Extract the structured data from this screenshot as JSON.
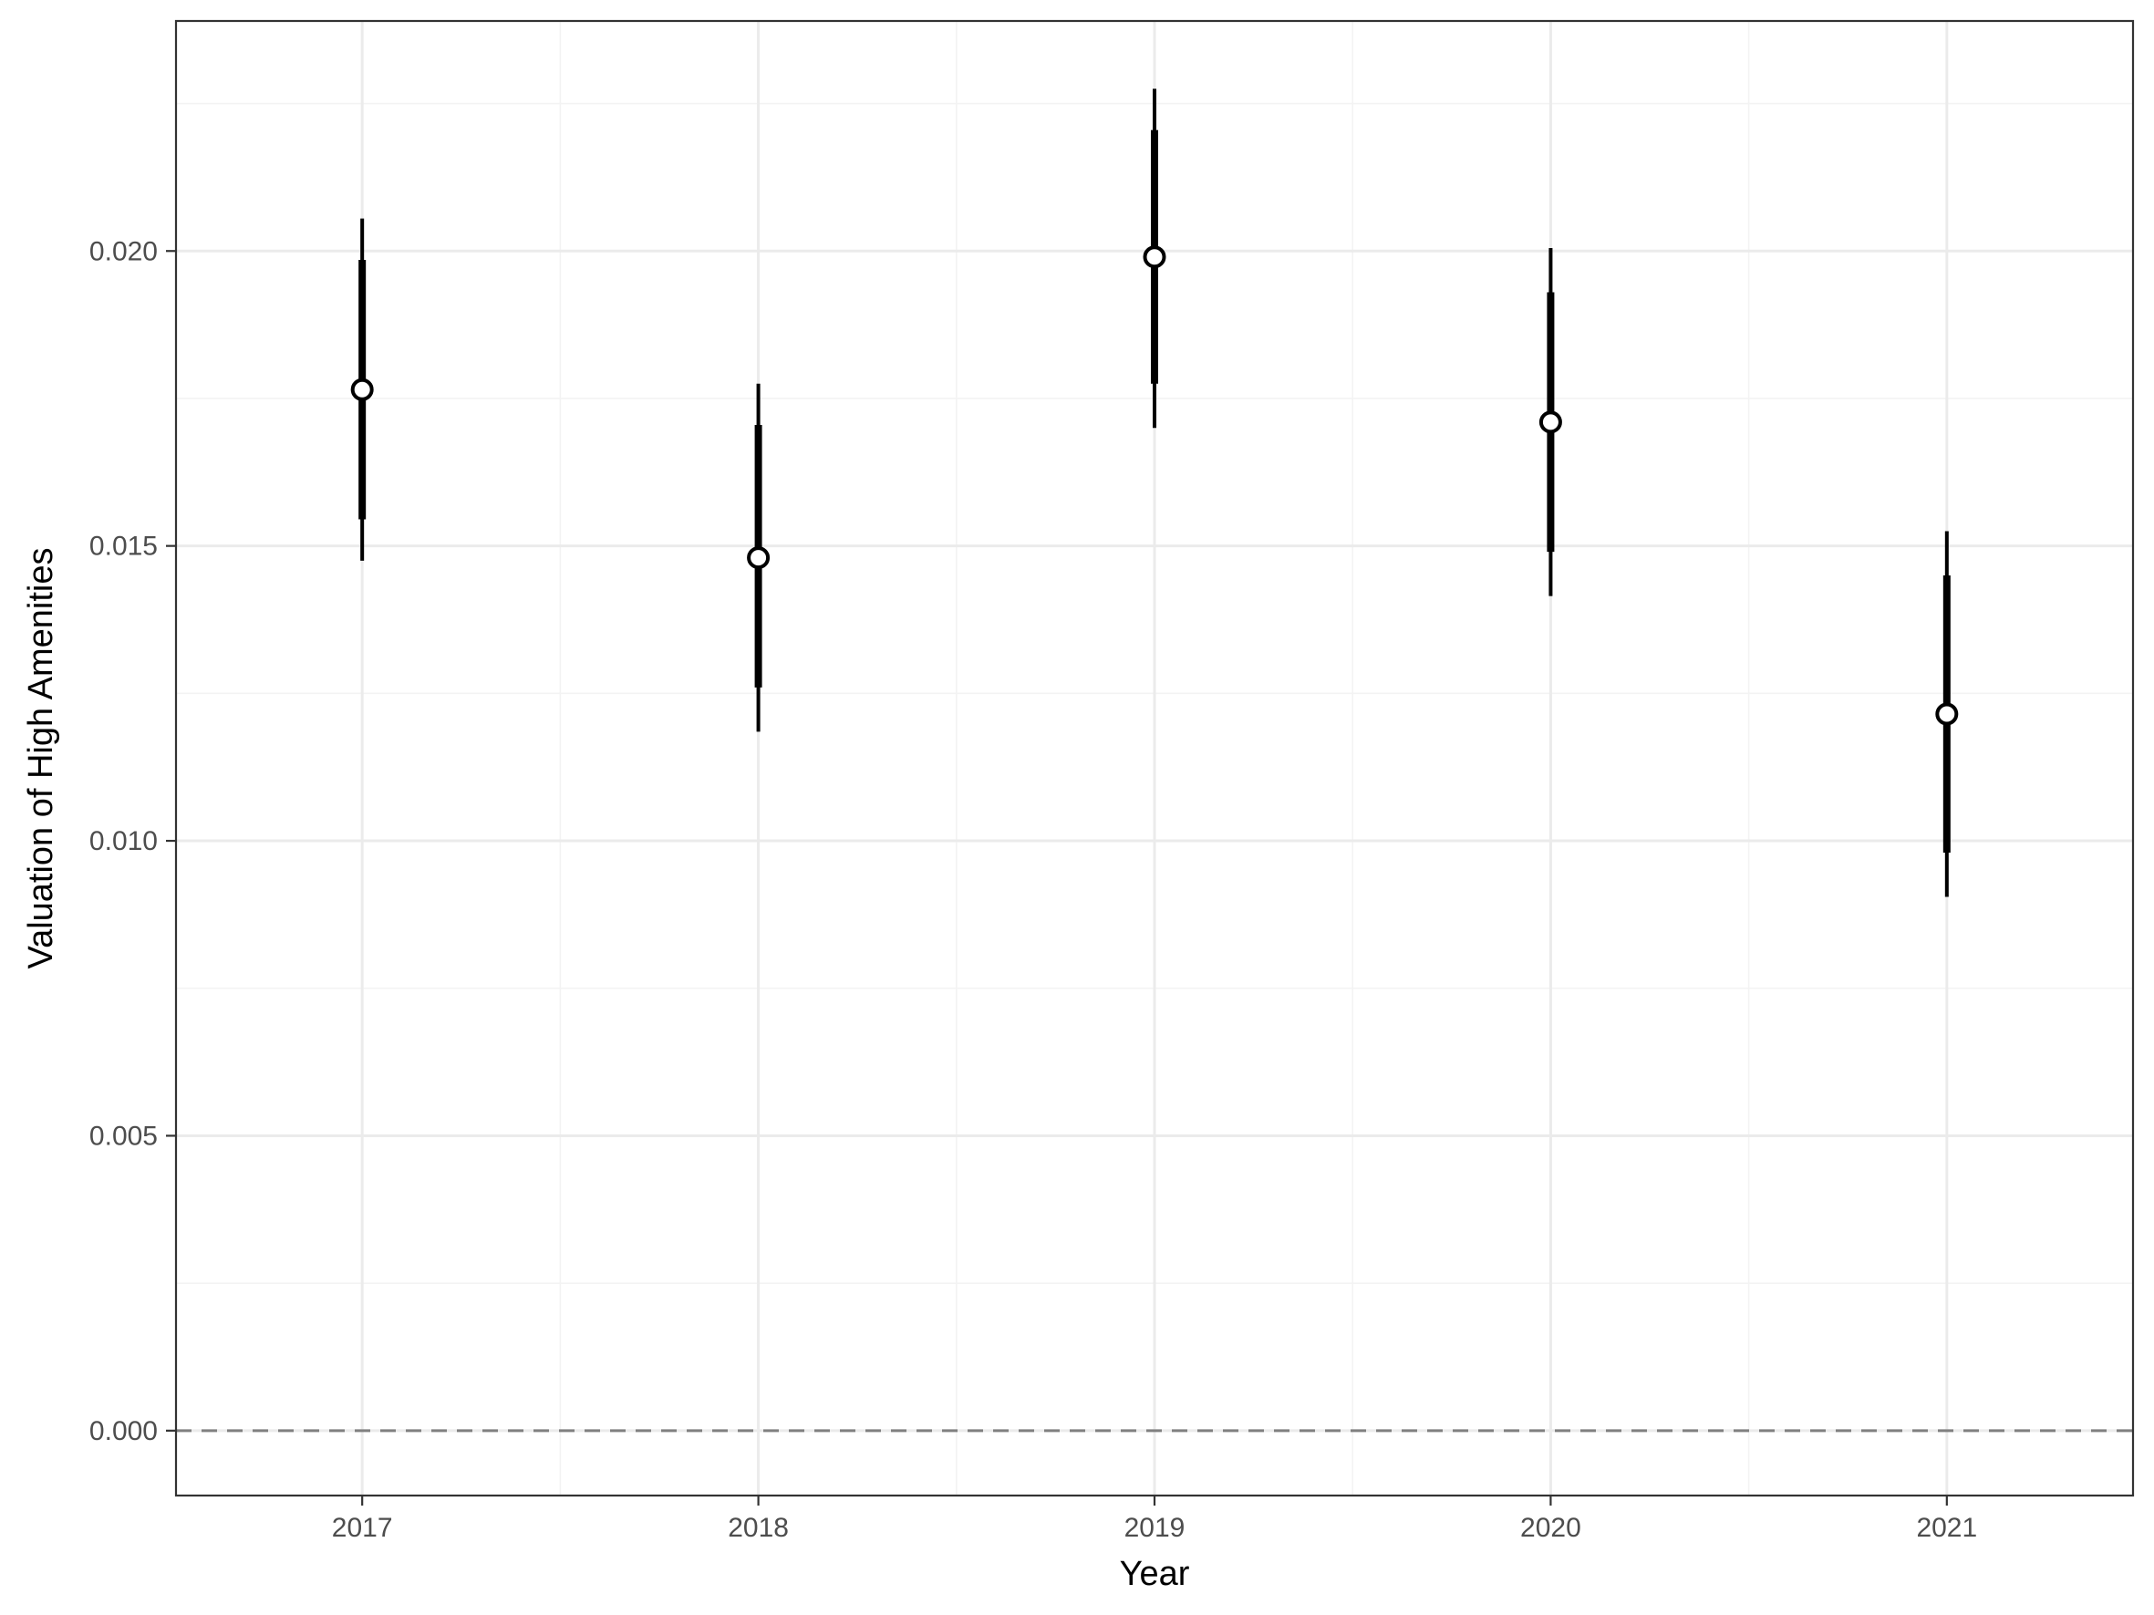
{
  "chart_data": {
    "type": "scatter",
    "title": "",
    "xlabel": "Year",
    "ylabel": "Valuation of High Amenities",
    "x": [
      "2017",
      "2018",
      "2019",
      "2020",
      "2021"
    ],
    "series": [
      {
        "values": [
          0.01765,
          0.0148,
          0.0199,
          0.0171,
          0.01215
        ],
        "inner_interval": [
          [
            0.01545,
            0.01985
          ],
          [
            0.0126,
            0.01705
          ],
          [
            0.01775,
            0.02205
          ],
          [
            0.0149,
            0.0193
          ],
          [
            0.0098,
            0.0145
          ]
        ],
        "outer_interval": [
          [
            0.01475,
            0.02055
          ],
          [
            0.01185,
            0.01775
          ],
          [
            0.017,
            0.02275
          ],
          [
            0.01415,
            0.02005
          ],
          [
            0.00905,
            0.01525
          ]
        ]
      }
    ],
    "xlim": [
      2016.53,
      2021.47
    ],
    "ylim": [
      -0.0011,
      0.0239
    ],
    "y_ticks": [
      0.0,
      0.005,
      0.01,
      0.015,
      0.02
    ],
    "y_tick_labels": [
      "0.000",
      "0.005",
      "0.010",
      "0.015",
      "0.020"
    ],
    "x_tick_labels": [
      "2017",
      "2018",
      "2019",
      "2020",
      "2021"
    ],
    "reference_line": {
      "y": 0.0,
      "style": "dashed",
      "color": "#808080"
    },
    "grid": true,
    "legend": "none",
    "colors": {
      "point_fill": "#ffffff",
      "point_stroke": "#000000",
      "interval": "#000000",
      "grid_major": "#ebebeb",
      "grid_minor": "#f3f3f3",
      "panel_border": "#333333"
    }
  }
}
